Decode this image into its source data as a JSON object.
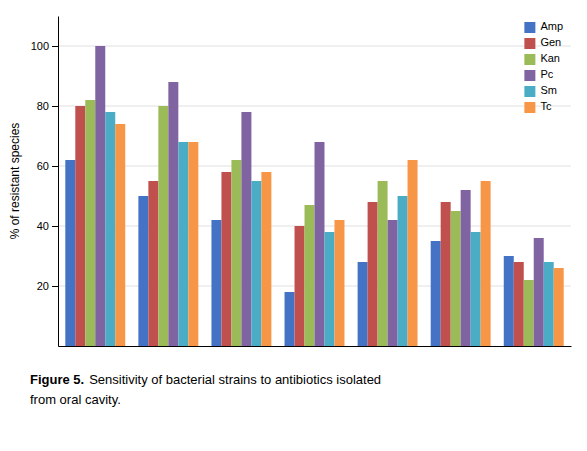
{
  "chart_data": {
    "type": "bar",
    "annotations": [
      "Figure 5.",
      "Sensitivity of bacterial strains to antibiotics isolated",
      "from oral cavity."
    ],
    "ylabel": "% of resistant species",
    "categories": [
      null,
      null,
      null,
      null,
      null,
      null,
      null
    ],
    "series": [
      {
        "name": "Amp",
        "color": "#4472C4",
        "values": [
          62,
          50,
          42,
          18,
          28,
          35,
          30
        ]
      },
      {
        "name": "Gen",
        "color": "#C0504D",
        "values": [
          80,
          55,
          58,
          40,
          48,
          48,
          28
        ]
      },
      {
        "name": "Kan",
        "color": "#9BBB59",
        "values": [
          82,
          80,
          62,
          47,
          55,
          45,
          22
        ]
      },
      {
        "name": "Pc",
        "color": "#8064A2",
        "values": [
          100,
          88,
          78,
          68,
          42,
          52,
          36
        ]
      },
      {
        "name": "Sm",
        "color": "#4BACC6",
        "values": [
          78,
          68,
          55,
          38,
          50,
          38,
          28
        ]
      },
      {
        "name": "Tc",
        "color": "#F79646",
        "values": [
          74,
          68,
          58,
          42,
          62,
          55,
          26
        ]
      }
    ],
    "ylim": [
      0,
      110
    ],
    "yticks": [
      20,
      40,
      60,
      80,
      100
    ],
    "grid": true,
    "legend": "upper right",
    "tick_labels": "y"
  }
}
